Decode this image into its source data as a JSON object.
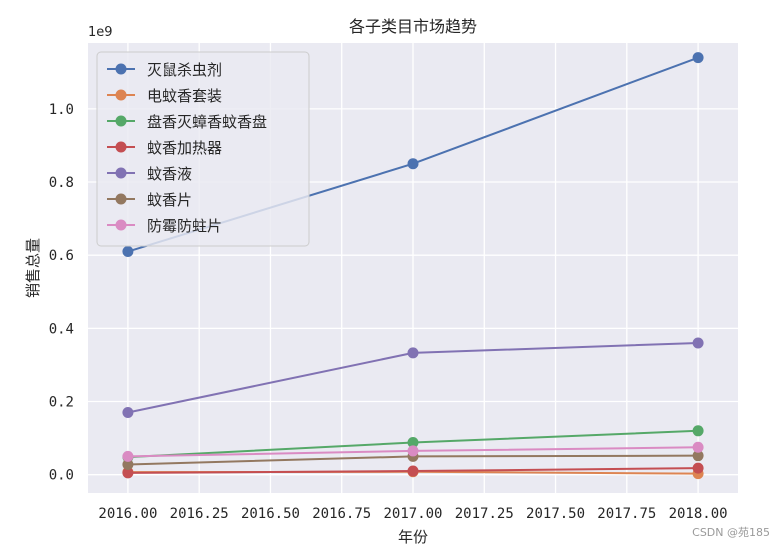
{
  "chart_data": {
    "type": "line",
    "title": "各子类目市场趋势",
    "xlabel": "年份",
    "ylabel": "销售总量",
    "scale_note": "1e9",
    "x": [
      2016.0,
      2017.0,
      2018.0
    ],
    "xlim": [
      2015.86,
      2018.14
    ],
    "ylim": [
      -0.05,
      1.18
    ],
    "xticks": [
      2016.0,
      2016.25,
      2016.5,
      2016.75,
      2017.0,
      2017.25,
      2017.5,
      2017.75,
      2018.0
    ],
    "xtick_labels": [
      "2016.00",
      "2016.25",
      "2016.50",
      "2016.75",
      "2017.00",
      "2017.25",
      "2017.50",
      "2017.75",
      "2018.00"
    ],
    "yticks": [
      0.0,
      0.2,
      0.4,
      0.6,
      0.8,
      1.0
    ],
    "ytick_labels": [
      "0.0",
      "0.2",
      "0.4",
      "0.6",
      "0.8",
      "1.0"
    ],
    "grid": true,
    "legend_position": "top-left",
    "series": [
      {
        "name": "灭鼠杀虫剂",
        "color": "#4c72b0",
        "values": [
          0.61,
          0.85,
          1.14
        ]
      },
      {
        "name": "电蚊香套装",
        "color": "#dd8452",
        "values": [
          0.007,
          0.008,
          0.003
        ]
      },
      {
        "name": "盘香灭蟑香蚊香盘",
        "color": "#55a868",
        "values": [
          0.048,
          0.088,
          0.12
        ]
      },
      {
        "name": "蚊香加热器",
        "color": "#c44e52",
        "values": [
          0.005,
          0.01,
          0.018
        ]
      },
      {
        "name": "蚊香液",
        "color": "#8172b3",
        "values": [
          0.17,
          0.333,
          0.36
        ]
      },
      {
        "name": "蚊香片",
        "color": "#937860",
        "values": [
          0.028,
          0.05,
          0.052
        ]
      },
      {
        "name": "防霉防蛀片",
        "color": "#da8bc3",
        "values": [
          0.05,
          0.065,
          0.075
        ]
      }
    ]
  },
  "watermark": "CSDN @苑185"
}
